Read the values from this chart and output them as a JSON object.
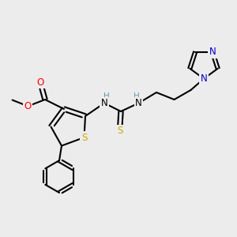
{
  "background_color": "#ececec",
  "line_color": "#000000",
  "line_width": 1.5,
  "figsize": [
    3.0,
    3.0
  ],
  "dpi": 100,
  "atom_colors": {
    "O": "#ff0000",
    "N": "#0000cd",
    "S": "#ccaa00",
    "H": "#6699aa",
    "C": "#000000"
  }
}
